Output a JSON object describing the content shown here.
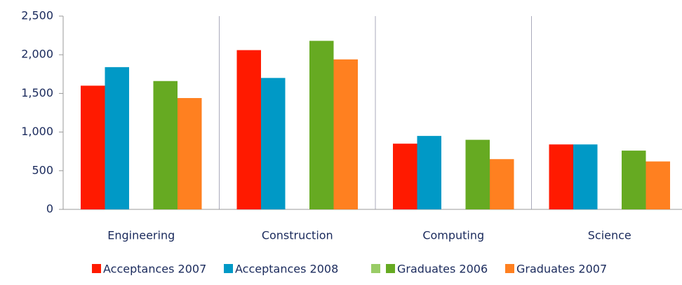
{
  "chart_data": {
    "type": "bar",
    "categories": [
      "Engineering",
      "Construction",
      "Computing",
      "Science"
    ],
    "series": [
      {
        "name": "Acceptances 2007",
        "color": "#ff1a00",
        "values": [
          1600,
          2060,
          850,
          840
        ]
      },
      {
        "name": "Acceptances 2008",
        "color": "#0099c6",
        "values": [
          1840,
          1700,
          950,
          840
        ]
      },
      {
        "name": null,
        "color": "#99cc66",
        "values": [
          null,
          null,
          null,
          null
        ]
      },
      {
        "name": "Graduates 2006",
        "color": "#66aa22",
        "values": [
          1660,
          2180,
          900,
          760
        ]
      },
      {
        "name": "Graduates 2007",
        "color": "#ff8020",
        "values": [
          1440,
          1940,
          650,
          620
        ]
      }
    ],
    "ylim": [
      0,
      2500
    ],
    "yticks": [
      0,
      500,
      {
        "value": 1000,
        "label": "1,000"
      },
      {
        "value": 1500,
        "label": "1,500"
      },
      {
        "value": 2000,
        "label": "2,000"
      },
      {
        "value": 2500,
        "label": "2,500"
      }
    ],
    "legend": "bottom"
  }
}
